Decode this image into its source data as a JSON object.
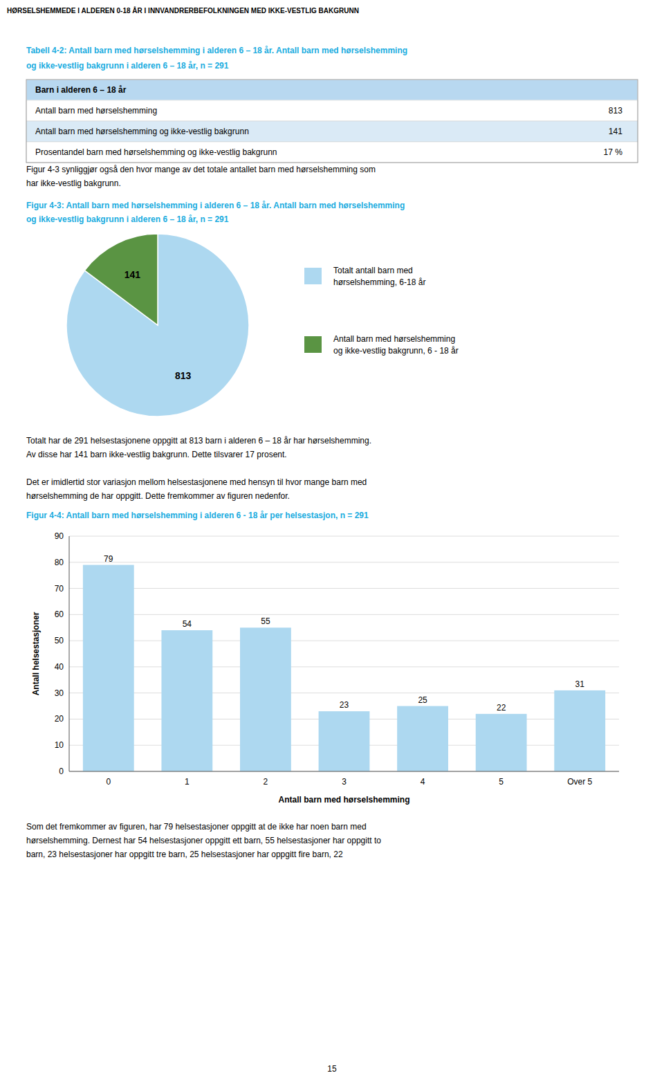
{
  "page_title": "HØRSELSHEMMEDE I ALDEREN 0-18 ÅR I INNVANDRERBEFOLKNINGEN MED IKKE-VESTLIG BAKGRUNN",
  "table": {
    "title": "Tabell 4-2: Antall barn med hørselshemming i alderen 6 – 18 år. Antall barn med hørselshemming\nog ikke-vestlig bakgrunn i alderen 6 – 18 år, n = 291",
    "header": "Barn i alderen 6 – 18 år",
    "rows": [
      {
        "label": "Antall barn med hørselshemming",
        "value": "813"
      },
      {
        "label": "Antall barn med hørselshemming og ikke-vestlig bakgrunn",
        "value": "141"
      },
      {
        "label": "Prosentandel barn med hørselshemming og ikke-vestlig bakgrunn",
        "value": "17 %"
      }
    ]
  },
  "text_1": "Figur 4-3 synliggjør også den hvor mange av det totale antallet barn med hørselshemming som\nhar ikke-vestlig bakgrunn.",
  "text_2": "Totalt har de 291 helsestasjonene oppgitt at 813 barn i alderen 6 – 18 år har hørselshemming.\nAv disse har 141 barn ikke-vestlig bakgrunn. Dette tilsvarer 17 prosent.",
  "text_3": "Det er imidlertid stor variasjon mellom helsestasjonene med hensyn til hvor mange barn med\nhørselshemming de har oppgitt. Dette fremkommer av figuren nedenfor.",
  "text_4": "Som det fremkommer av figuren, har 79 helsestasjoner oppgitt at de ikke har noen barn med\nhørselshemming. Dernest har 54 helsestasjoner oppgitt ett barn, 55 helsestasjoner har oppgitt to\nbarn, 23 helsestasjoner har oppgitt tre barn, 25 helsestasjoner har oppgitt fire barn, 22",
  "page_number": "15",
  "chart_data": [
    {
      "type": "pie",
      "title": "Figur 4-3: Antall barn med hørselshemming i alderen 6 – 18 år. Antall barn med hørselshemming\nog ikke-vestlig bakgrunn i alderen 6 – 18 år, n = 291",
      "categories": [
        "Totalt antall barn med\nhørselshemming, 6-18 år",
        "Antall barn med hørselshemming\nog ikke-vestlig bakgrunn, 6 - 18 år"
      ],
      "values": [
        813,
        141
      ],
      "colors": [
        "#add8f0",
        "#5a9443"
      ],
      "data_labels": true,
      "legend": "right"
    },
    {
      "type": "bar",
      "title": "Figur 4-4: Antall barn med hørselshemming i alderen 6 - 18 år per helsestasjon, n = 291",
      "categories": [
        "0",
        "1",
        "2",
        "3",
        "4",
        "5",
        "Over 5"
      ],
      "values": [
        79,
        54,
        55,
        23,
        25,
        22,
        31
      ],
      "color": "#add8f0",
      "x_label": "Antall barn med hørselshemming",
      "y_label": "Antall helsestasjoner",
      "ylim": [
        0,
        90
      ],
      "yticks": [
        0,
        10,
        20,
        30,
        40,
        50,
        60,
        70,
        80,
        90
      ],
      "grid": true,
      "data_labels": true
    }
  ]
}
